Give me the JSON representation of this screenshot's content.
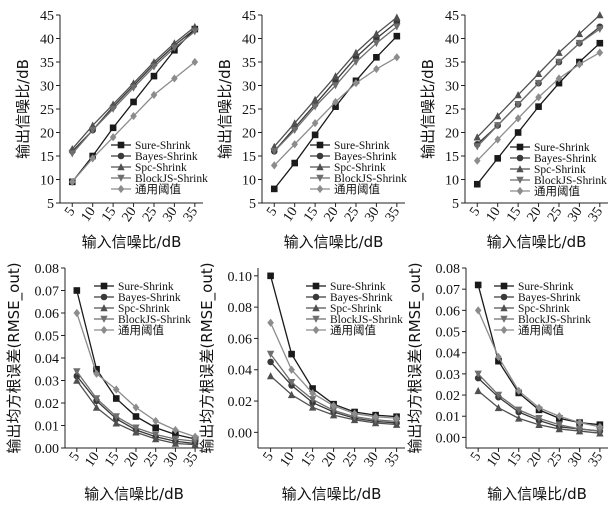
{
  "chart_data": [
    {
      "type": "line",
      "xlabel": "输入信噪比/dB",
      "ylabel": "输出信噪比/dB",
      "x": [
        5,
        10,
        15,
        20,
        25,
        30,
        35
      ],
      "xlim": [
        2,
        37
      ],
      "ylim": [
        5,
        45
      ],
      "yticks": [
        5,
        10,
        15,
        20,
        25,
        30,
        35,
        40,
        45
      ],
      "grid": false,
      "legend_position": "center-right",
      "series": [
        {
          "name": "Sure-Shrink",
          "values": [
            9.5,
            15,
            21,
            26.5,
            32,
            37.5,
            42
          ]
        },
        {
          "name": "Bayes-Shrink",
          "values": [
            16,
            20.5,
            25.5,
            30,
            34.5,
            38.5,
            42
          ]
        },
        {
          "name": "Spc-Shrink",
          "values": [
            16.5,
            21.5,
            26,
            30.5,
            35,
            39,
            42.5
          ]
        },
        {
          "name": "BlockJS-Shrink",
          "values": [
            15.5,
            20.5,
            25,
            29.5,
            34,
            38,
            41.5
          ]
        },
        {
          "name": "通用阈值",
          "values": [
            9.5,
            14.5,
            19,
            23.5,
            28,
            31.5,
            35
          ]
        }
      ]
    },
    {
      "type": "line",
      "xlabel": "输入信噪比/dB",
      "ylabel": "输出信噪比/dB",
      "x": [
        5,
        10,
        15,
        20,
        25,
        30,
        35
      ],
      "xlim": [
        2,
        37
      ],
      "ylim": [
        5,
        45
      ],
      "yticks": [
        5,
        10,
        15,
        20,
        25,
        30,
        35,
        40,
        45
      ],
      "grid": false,
      "legend_position": "center-right",
      "series": [
        {
          "name": "Sure-Shrink",
          "values": [
            8,
            13.5,
            19.5,
            25.5,
            31,
            36,
            40.5
          ]
        },
        {
          "name": "Bayes-Shrink",
          "values": [
            16,
            21,
            26,
            31,
            36,
            40,
            43.5
          ]
        },
        {
          "name": "Spc-Shrink",
          "values": [
            17,
            22,
            27,
            32,
            37,
            41,
            44.5
          ]
        },
        {
          "name": "BlockJS-Shrink",
          "values": [
            16,
            20.5,
            25.5,
            30,
            35,
            39,
            42.5
          ]
        },
        {
          "name": "通用阈值",
          "values": [
            13,
            17.5,
            22,
            26.5,
            30.5,
            33.5,
            36
          ]
        }
      ]
    },
    {
      "type": "line",
      "xlabel": "输入信噪比/dB",
      "ylabel": "输出信噪比/dB",
      "x": [
        5,
        10,
        15,
        20,
        25,
        30,
        35
      ],
      "xlim": [
        2,
        37
      ],
      "ylim": [
        5,
        45
      ],
      "yticks": [
        5,
        10,
        15,
        20,
        25,
        30,
        35,
        40,
        45
      ],
      "grid": false,
      "legend_position": "center-right",
      "series": [
        {
          "name": "Sure-Shrink",
          "values": [
            9,
            14.5,
            20,
            25.5,
            30.5,
            35,
            39
          ]
        },
        {
          "name": "Bayes-Shrink",
          "values": [
            17.5,
            21.5,
            26,
            30.5,
            35,
            39,
            42.5
          ]
        },
        {
          "name": "Spc-Shrink",
          "values": [
            19,
            23.5,
            28,
            32.5,
            37,
            41,
            45
          ]
        },
        {
          "name": "BlockJS-Shrink",
          "values": [
            17,
            21.5,
            26,
            30.5,
            35,
            39,
            42
          ]
        },
        {
          "name": "通用阈值",
          "values": [
            14,
            18.5,
            23,
            27.5,
            31.5,
            34.5,
            37
          ]
        }
      ]
    },
    {
      "type": "line",
      "xlabel": "输入信噪比/dB",
      "ylabel": "输出均方根误差(RMSE_out)",
      "x": [
        5,
        10,
        15,
        20,
        25,
        30,
        35
      ],
      "xlim": [
        2,
        37
      ],
      "ylim": [
        0,
        0.08
      ],
      "yticks": [
        0,
        0.01,
        0.02,
        0.03,
        0.04,
        0.05,
        0.06,
        0.07,
        0.08
      ],
      "ytick_labels": [
        "0.00",
        "0.01",
        "0.02",
        "0.03",
        "0.04",
        "0.05",
        "0.06",
        "0.07",
        "0.08"
      ],
      "grid": false,
      "legend_position": "top-right",
      "series": [
        {
          "name": "Sure-Shrink",
          "values": [
            0.07,
            0.035,
            0.022,
            0.014,
            0.009,
            0.006,
            0.004
          ]
        },
        {
          "name": "Bayes-Shrink",
          "values": [
            0.032,
            0.021,
            0.013,
            0.008,
            0.005,
            0.003,
            0.002
          ]
        },
        {
          "name": "Spc-Shrink",
          "values": [
            0.03,
            0.018,
            0.011,
            0.007,
            0.004,
            0.002,
            0.0015
          ]
        },
        {
          "name": "BlockJS-Shrink",
          "values": [
            0.034,
            0.022,
            0.014,
            0.009,
            0.006,
            0.004,
            0.003
          ]
        },
        {
          "name": "通用阈值",
          "values": [
            0.06,
            0.033,
            0.026,
            0.018,
            0.012,
            0.008,
            0.005
          ]
        }
      ]
    },
    {
      "type": "line",
      "xlabel": "输入信噪比/dB",
      "ylabel": "输出均方根误差(RMSE_out)",
      "x": [
        5,
        10,
        15,
        20,
        25,
        30,
        35
      ],
      "xlim": [
        2,
        37
      ],
      "ylim": [
        -0.01,
        0.105
      ],
      "yticks": [
        0,
        0.02,
        0.04,
        0.06,
        0.08,
        0.1
      ],
      "ytick_labels": [
        "0.00",
        "0.02",
        "0.04",
        "0.06",
        "0.08",
        "0.10"
      ],
      "grid": false,
      "legend_position": "top-right",
      "series": [
        {
          "name": "Sure-Shrink",
          "values": [
            0.1,
            0.05,
            0.028,
            0.018,
            0.013,
            0.011,
            0.01
          ]
        },
        {
          "name": "Bayes-Shrink",
          "values": [
            0.045,
            0.03,
            0.019,
            0.013,
            0.009,
            0.007,
            0.006
          ]
        },
        {
          "name": "Spc-Shrink",
          "values": [
            0.036,
            0.024,
            0.016,
            0.011,
            0.008,
            0.006,
            0.005
          ]
        },
        {
          "name": "BlockJS-Shrink",
          "values": [
            0.05,
            0.032,
            0.021,
            0.014,
            0.01,
            0.008,
            0.007
          ]
        },
        {
          "name": "通用阈值",
          "values": [
            0.07,
            0.04,
            0.025,
            0.017,
            0.012,
            0.01,
            0.009
          ]
        }
      ]
    },
    {
      "type": "line",
      "xlabel": "输入信噪比/dB",
      "ylabel": "输出均方根误差(RMSE_out)",
      "x": [
        5,
        10,
        15,
        20,
        25,
        30,
        35
      ],
      "xlim": [
        2,
        37
      ],
      "ylim": [
        -0.005,
        0.08
      ],
      "yticks": [
        0,
        0.01,
        0.02,
        0.03,
        0.04,
        0.05,
        0.06,
        0.07,
        0.08
      ],
      "ytick_labels": [
        "0.00",
        "0.01",
        "0.02",
        "0.03",
        "0.04",
        "0.05",
        "0.06",
        "0.07",
        "0.08"
      ],
      "grid": false,
      "legend_position": "top-right",
      "series": [
        {
          "name": "Sure-Shrink",
          "values": [
            0.072,
            0.036,
            0.021,
            0.013,
            0.009,
            0.007,
            0.006
          ]
        },
        {
          "name": "Bayes-Shrink",
          "values": [
            0.028,
            0.019,
            0.012,
            0.008,
            0.005,
            0.004,
            0.003
          ]
        },
        {
          "name": "Spc-Shrink",
          "values": [
            0.022,
            0.014,
            0.009,
            0.006,
            0.004,
            0.003,
            0.002
          ]
        },
        {
          "name": "BlockJS-Shrink",
          "values": [
            0.03,
            0.02,
            0.013,
            0.009,
            0.006,
            0.004,
            0.003
          ]
        },
        {
          "name": "通用阈值",
          "values": [
            0.06,
            0.038,
            0.022,
            0.014,
            0.01,
            0.007,
            0.005
          ]
        }
      ]
    }
  ],
  "series_style": {
    "Sure-Shrink": {
      "color": "#1a1a1a",
      "marker": "square"
    },
    "Bayes-Shrink": {
      "color": "#3a3a3a",
      "marker": "circle"
    },
    "Spc-Shrink": {
      "color": "#505050",
      "marker": "triangle-up"
    },
    "BlockJS-Shrink": {
      "color": "#6e6e6e",
      "marker": "triangle-down"
    },
    "通用阈值": {
      "color": "#8c8c8c",
      "marker": "diamond"
    }
  }
}
